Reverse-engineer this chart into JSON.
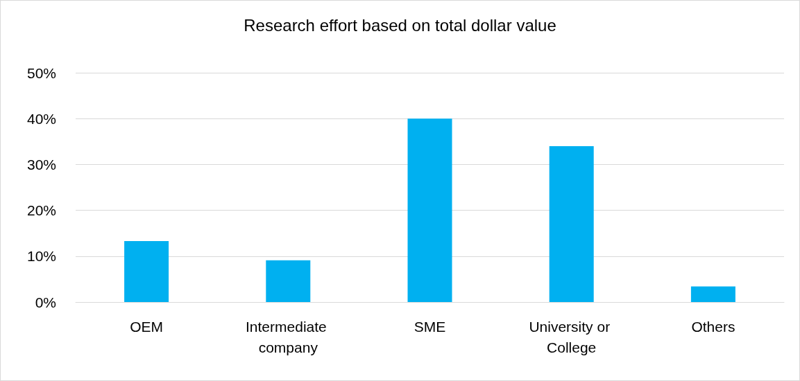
{
  "chart_data": {
    "type": "bar",
    "title": "Research effort based on total dollar value",
    "categories": [
      "OEM",
      "Intermediate company",
      "SME",
      "University or College",
      "Others"
    ],
    "values": [
      13.3,
      9.1,
      40,
      34,
      3.4
    ],
    "color": "#00b0f0",
    "ylim": [
      0,
      50
    ],
    "yticks": [
      {
        "value": 0,
        "label": "0%"
      },
      {
        "value": 10,
        "label": "10%"
      },
      {
        "value": 20,
        "label": "20%"
      },
      {
        "value": 30,
        "label": "30%"
      },
      {
        "value": 40,
        "label": "40%"
      },
      {
        "value": 50,
        "label": "50%"
      }
    ],
    "grid": true
  }
}
